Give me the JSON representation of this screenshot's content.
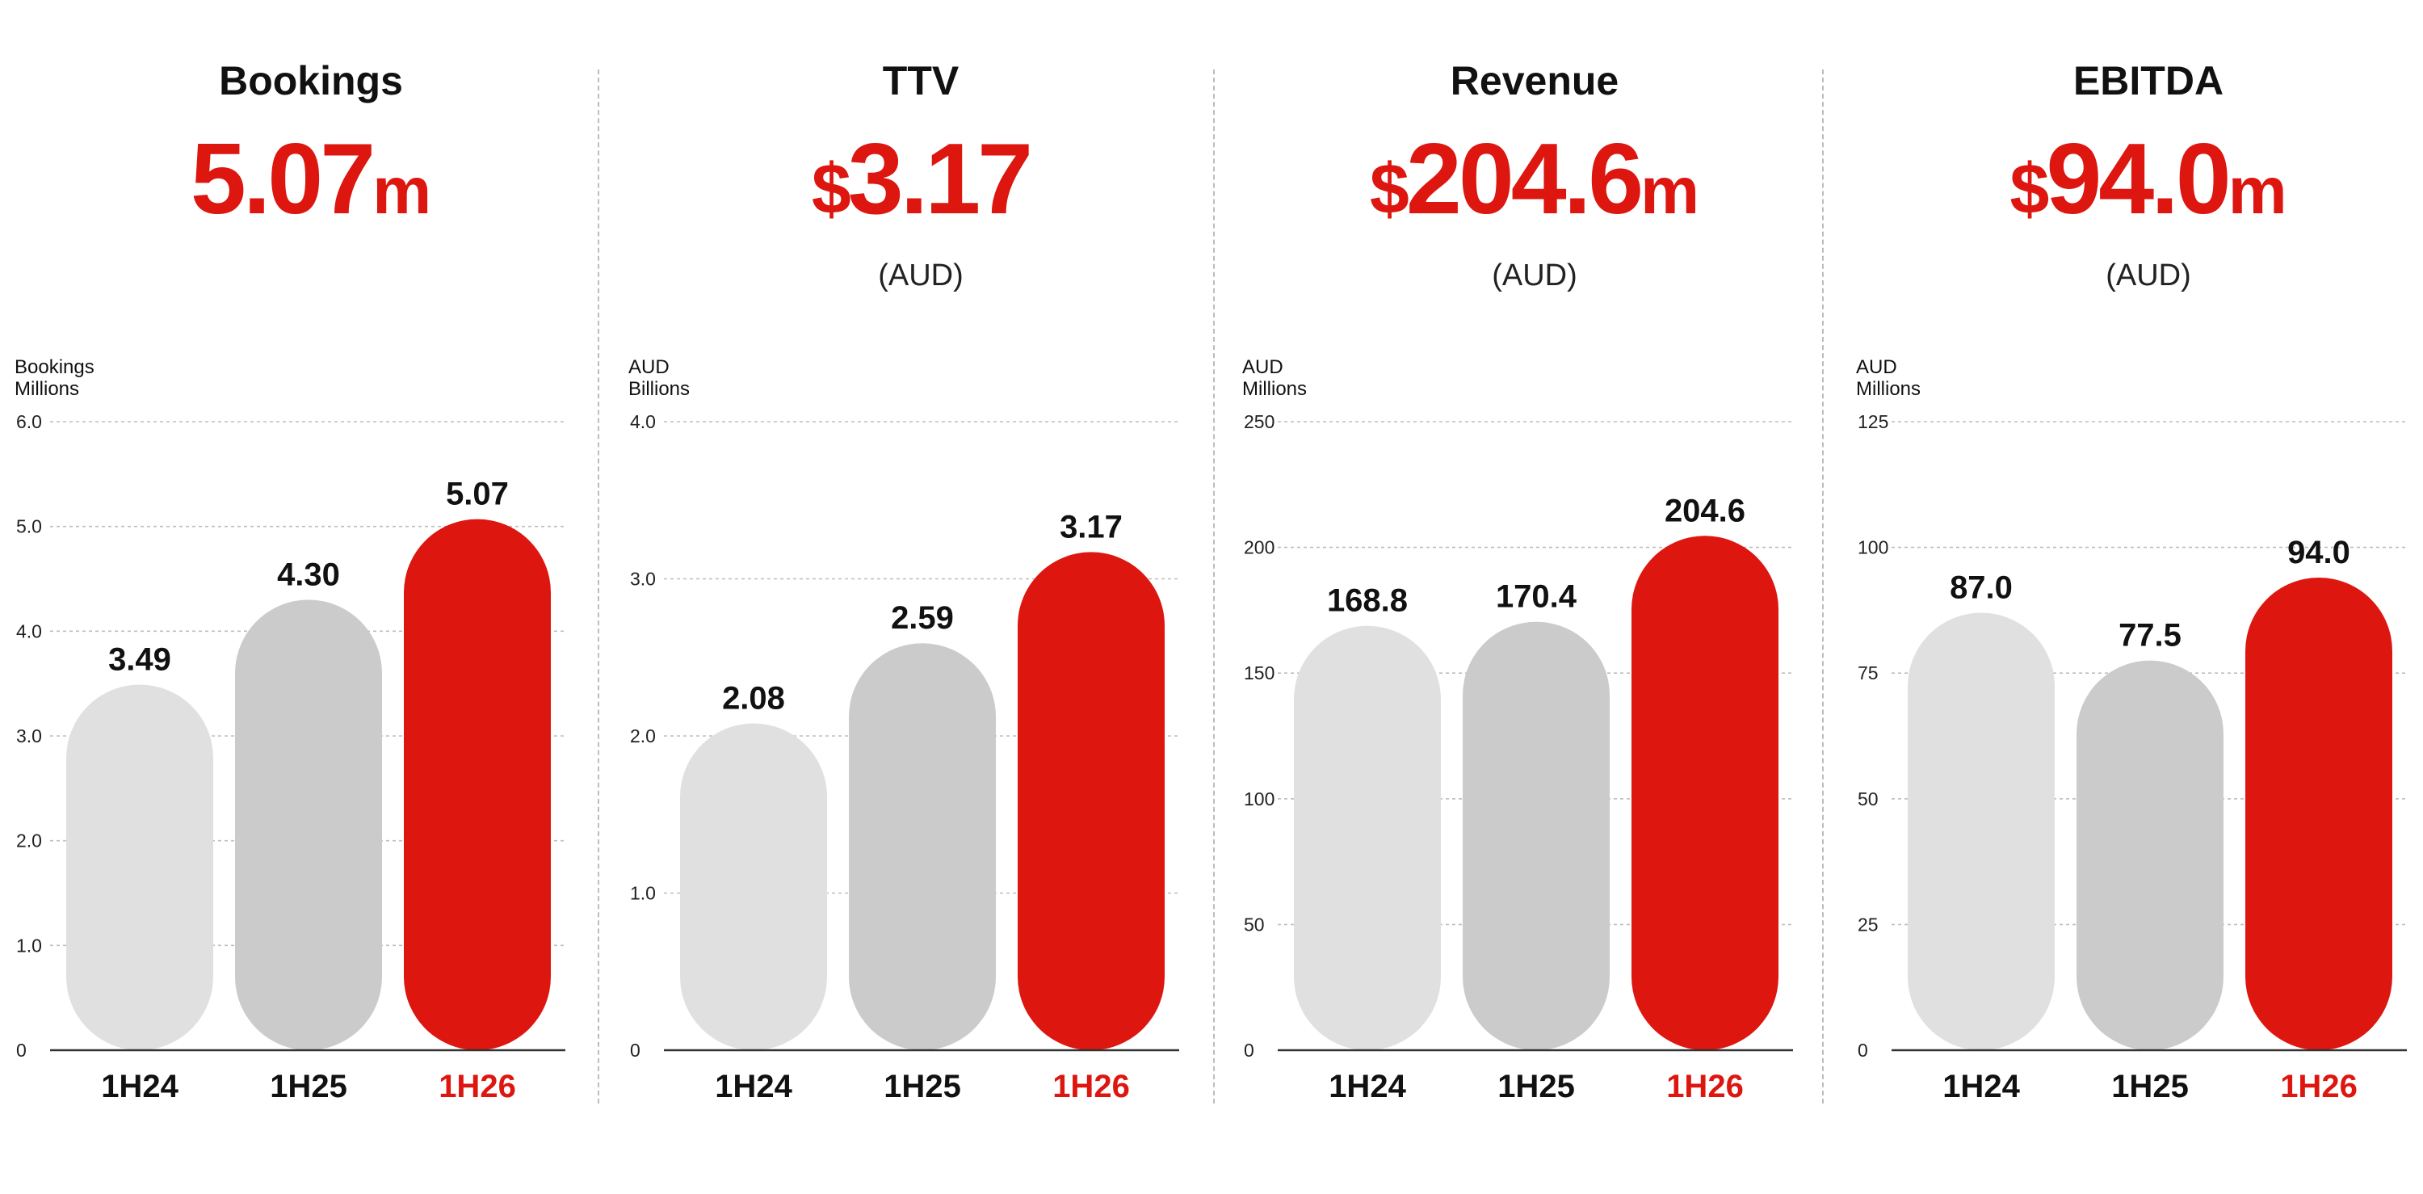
{
  "colors": {
    "accent": "#dd160f",
    "bar_1h24": "#e0e0e0",
    "bar_1h25": "#cbcbcb",
    "bar_1h26": "#dd160f",
    "text": "#111111",
    "grid": "#bdbdbd"
  },
  "panels": [
    {
      "title": "Bookings",
      "headline": {
        "prefix": "",
        "value": "5.07",
        "suffix": "m"
      },
      "unit": "",
      "axis_label": [
        "Bookings",
        "Millions"
      ]
    },
    {
      "title": "TTV",
      "headline": {
        "prefix": "$",
        "value": "3.17",
        "suffix": ""
      },
      "unit": "(AUD)",
      "axis_label": [
        "AUD",
        "Billions"
      ]
    },
    {
      "title": "Revenue",
      "headline": {
        "prefix": "$",
        "value": "204.6",
        "suffix": "m"
      },
      "unit": "(AUD)",
      "axis_label": [
        "AUD",
        "Millions"
      ]
    },
    {
      "title": "EBITDA",
      "headline": {
        "prefix": "$",
        "value": "94.0",
        "suffix": "m"
      },
      "unit": "(AUD)",
      "axis_label": [
        "AUD",
        "Millions"
      ]
    }
  ],
  "chart_data": [
    {
      "type": "bar",
      "title": "Bookings",
      "ylabel": "Bookings Millions",
      "categories": [
        "1H24",
        "1H25",
        "1H26"
      ],
      "values": [
        3.49,
        4.3,
        5.07
      ],
      "value_labels": [
        "3.49",
        "4.30",
        "5.07"
      ],
      "ylim": [
        0,
        6
      ],
      "yticks": [
        0,
        1,
        2,
        3,
        4,
        5,
        6
      ],
      "ytick_labels": [
        "0",
        "1.0",
        "2.0",
        "3.0",
        "4.0",
        "5.0",
        "6.0"
      ],
      "grid": true,
      "highlight": "1H26"
    },
    {
      "type": "bar",
      "title": "TTV",
      "ylabel": "AUD Billions",
      "categories": [
        "1H24",
        "1H25",
        "1H26"
      ],
      "values": [
        2.08,
        2.59,
        3.17
      ],
      "value_labels": [
        "2.08",
        "2.59",
        "3.17"
      ],
      "ylim": [
        0,
        4
      ],
      "yticks": [
        0,
        1,
        2,
        3,
        4
      ],
      "ytick_labels": [
        "0",
        "1.0",
        "2.0",
        "3.0",
        "4.0"
      ],
      "grid": true,
      "highlight": "1H26"
    },
    {
      "type": "bar",
      "title": "Revenue",
      "ylabel": "AUD Millions",
      "categories": [
        "1H24",
        "1H25",
        "1H26"
      ],
      "values": [
        168.8,
        170.4,
        204.6
      ],
      "value_labels": [
        "168.8",
        "170.4",
        "204.6"
      ],
      "ylim": [
        0,
        250
      ],
      "yticks": [
        0,
        50,
        100,
        150,
        200,
        250
      ],
      "ytick_labels": [
        "0",
        "50",
        "100",
        "150",
        "200",
        "250"
      ],
      "grid": true,
      "highlight": "1H26"
    },
    {
      "type": "bar",
      "title": "EBITDA",
      "ylabel": "AUD Millions",
      "categories": [
        "1H24",
        "1H25",
        "1H26"
      ],
      "values": [
        87.0,
        77.5,
        94.0
      ],
      "value_labels": [
        "87.0",
        "77.5",
        "94.0"
      ],
      "ylim": [
        0,
        125
      ],
      "yticks": [
        0,
        25,
        50,
        75,
        100,
        125
      ],
      "ytick_labels": [
        "0",
        "25",
        "50",
        "75",
        "100",
        "125"
      ],
      "grid": true,
      "highlight": "1H26"
    }
  ]
}
